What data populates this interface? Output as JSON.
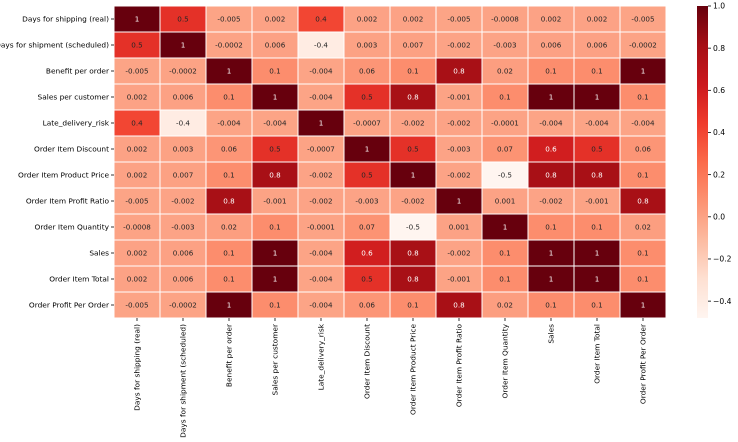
{
  "chart_data": {
    "type": "heatmap",
    "title": "",
    "xlabel": "",
    "ylabel": "",
    "labels": [
      "Days for shipping (real)",
      "Days for shipment (scheduled)",
      "Benefit per order",
      "Sales per customer",
      "Late_delivery_risk",
      "Order Item Discount",
      "Order Item Product Price",
      "Order Item Profit Ratio",
      "Order Item Quantity",
      "Sales",
      "Order Item Total",
      "Order Profit Per Order"
    ],
    "annotations": [
      [
        "1",
        "0.5",
        "-0.005",
        "0.002",
        "0.4",
        "0.002",
        "0.002",
        "-0.005",
        "-0.0008",
        "0.002",
        "0.002",
        "-0.005"
      ],
      [
        "0.5",
        "1",
        "-0.0002",
        "0.006",
        "-0.4",
        "0.003",
        "0.007",
        "-0.002",
        "-0.003",
        "0.006",
        "0.006",
        "-0.0002"
      ],
      [
        "-0.005",
        "-0.0002",
        "1",
        "0.1",
        "-0.004",
        "0.06",
        "0.1",
        "0.8",
        "0.02",
        "0.1",
        "0.1",
        "1"
      ],
      [
        "0.002",
        "0.006",
        "0.1",
        "1",
        "-0.004",
        "0.5",
        "0.8",
        "-0.001",
        "0.1",
        "1",
        "1",
        "0.1"
      ],
      [
        "0.4",
        "-0.4",
        "-0.004",
        "-0.004",
        "1",
        "-0.0007",
        "-0.002",
        "-0.002",
        "-0.0001",
        "-0.004",
        "-0.004",
        "-0.004"
      ],
      [
        "0.002",
        "0.003",
        "0.06",
        "0.5",
        "-0.0007",
        "1",
        "0.5",
        "-0.003",
        "0.07",
        "0.6",
        "0.5",
        "0.06"
      ],
      [
        "0.002",
        "0.007",
        "0.1",
        "0.8",
        "-0.002",
        "0.5",
        "1",
        "-0.002",
        "-0.5",
        "0.8",
        "0.8",
        "0.1"
      ],
      [
        "-0.005",
        "-0.002",
        "0.8",
        "-0.001",
        "-0.002",
        "-0.003",
        "-0.002",
        "1",
        "0.001",
        "-0.002",
        "-0.001",
        "0.8"
      ],
      [
        "-0.0008",
        "-0.003",
        "0.02",
        "0.1",
        "-0.0001",
        "0.07",
        "-0.5",
        "0.001",
        "1",
        "0.1",
        "0.1",
        "0.02"
      ],
      [
        "0.002",
        "0.006",
        "0.1",
        "1",
        "-0.004",
        "0.6",
        "0.8",
        "-0.002",
        "0.1",
        "1",
        "1",
        "0.1"
      ],
      [
        "0.002",
        "0.006",
        "0.1",
        "1",
        "-0.004",
        "0.5",
        "0.8",
        "-0.001",
        "0.1",
        "1",
        "1",
        "0.1"
      ],
      [
        "-0.005",
        "-0.0002",
        "1",
        "0.1",
        "-0.004",
        "0.06",
        "0.1",
        "0.8",
        "0.02",
        "0.1",
        "0.1",
        "1"
      ]
    ],
    "colorbar": {
      "min": -0.48,
      "max": 1.0,
      "ticks": [
        "1.0",
        "0.8",
        "0.6",
        "0.4",
        "0.2",
        "0.0",
        "−0.2",
        "−0.4"
      ]
    },
    "colormap": {
      "name": "Reds",
      "stops": [
        "#fff5f0",
        "#fee0d2",
        "#fcbba1",
        "#fc9272",
        "#fb6a4a",
        "#ef3b2c",
        "#cb181d",
        "#a50f15",
        "#67000d"
      ]
    },
    "grid": true,
    "legend": "colorbar-right"
  }
}
